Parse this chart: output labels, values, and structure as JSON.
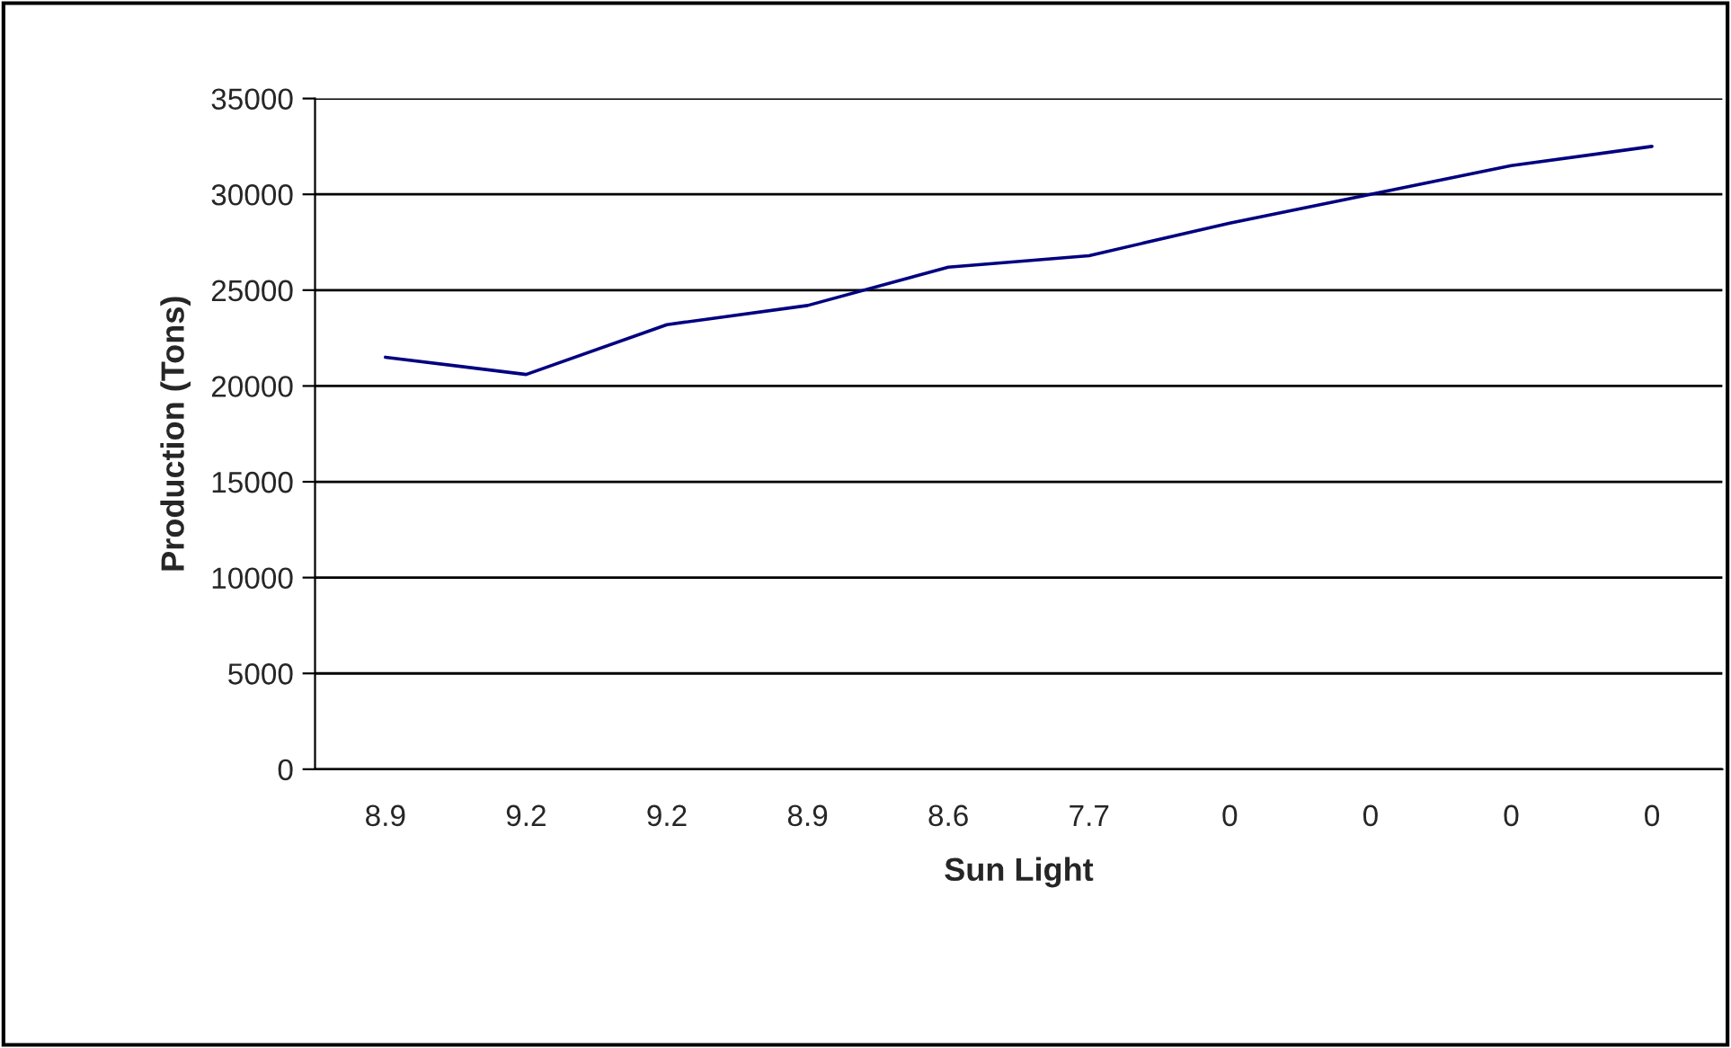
{
  "chart_data": {
    "type": "line",
    "xlabel": "Sun Light",
    "ylabel": "Production (Tons)",
    "categories": [
      "8.9",
      "9.2",
      "9.2",
      "8.9",
      "8.6",
      "7.7",
      "0",
      "0",
      "0",
      "0"
    ],
    "series": [
      {
        "color": "#000080",
        "values": [
          21500,
          20600,
          23200,
          24200,
          26200,
          26800,
          28500,
          30000,
          31500,
          32500
        ]
      }
    ],
    "ylim": [
      0,
      35000
    ],
    "yticks": [
      0,
      5000,
      10000,
      15000,
      20000,
      25000,
      30000,
      35000
    ],
    "grid": "y",
    "legend": false,
    "marker": "none",
    "line_style": "solid"
  }
}
